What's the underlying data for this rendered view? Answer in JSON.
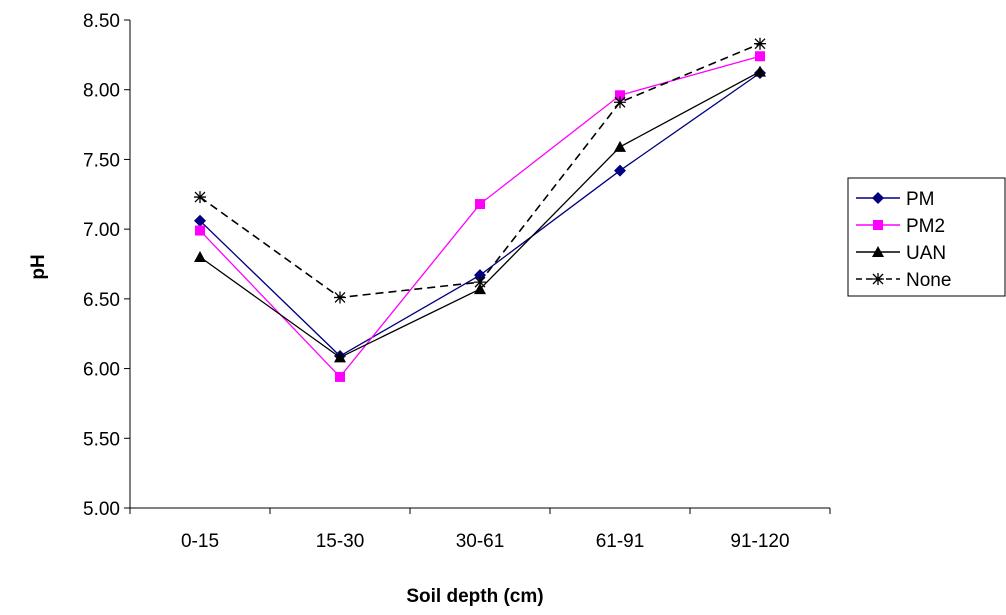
{
  "chart_data": {
    "type": "line",
    "title": "",
    "xlabel": "Soil depth (cm)",
    "ylabel": "pH",
    "categories": [
      "0-15",
      "15-30",
      "30-61",
      "61-91",
      "91-120"
    ],
    "ylim": [
      5.0,
      8.5
    ],
    "yticks": [
      5.0,
      5.5,
      6.0,
      6.5,
      7.0,
      7.5,
      8.0,
      8.5
    ],
    "ytick_labels": [
      "5.00",
      "5.50",
      "6.00",
      "6.50",
      "7.00",
      "7.50",
      "8.00",
      "8.50"
    ],
    "grid": false,
    "legend_position": "right",
    "series": [
      {
        "name": "PM",
        "values": [
          7.06,
          6.09,
          6.67,
          7.42,
          8.12
        ],
        "color": "#000080",
        "marker": "diamond",
        "dash": "solid"
      },
      {
        "name": "PM2",
        "values": [
          6.99,
          5.94,
          7.18,
          7.96,
          8.24
        ],
        "color": "#ff00ff",
        "marker": "square",
        "dash": "solid"
      },
      {
        "name": "UAN",
        "values": [
          6.8,
          6.08,
          6.57,
          7.59,
          8.13
        ],
        "color": "#000000",
        "marker": "triangle",
        "dash": "solid"
      },
      {
        "name": "None",
        "values": [
          7.23,
          6.51,
          6.62,
          7.91,
          8.33
        ],
        "color": "#000000",
        "marker": "star",
        "dash": "dashed"
      }
    ]
  }
}
